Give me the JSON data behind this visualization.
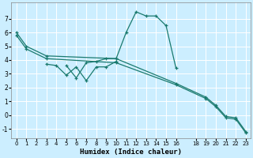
{
  "xlabel": "Humidex (Indice chaleur)",
  "background_color": "#cceeff",
  "grid_color": "#ffffff",
  "line_color": "#1a7a6e",
  "xlim": [
    -0.5,
    23.5
  ],
  "ylim": [
    -1.7,
    8.2
  ],
  "xticks": [
    0,
    1,
    2,
    3,
    4,
    5,
    6,
    7,
    8,
    9,
    10,
    11,
    12,
    13,
    14,
    15,
    16,
    18,
    19,
    20,
    21,
    22,
    23
  ],
  "yticks": [
    -1,
    0,
    1,
    2,
    3,
    4,
    5,
    6,
    7
  ],
  "lines": [
    {
      "x": [
        0,
        1,
        3,
        10,
        16,
        19,
        20,
        21,
        22,
        23
      ],
      "y": [
        6.0,
        5.0,
        4.3,
        4.1,
        2.3,
        1.3,
        0.7,
        -0.1,
        -0.2,
        -1.2
      ]
    },
    {
      "x": [
        0,
        1,
        3,
        10,
        16,
        19,
        20,
        21,
        22,
        23
      ],
      "y": [
        5.8,
        4.8,
        4.1,
        3.8,
        2.2,
        1.2,
        0.6,
        -0.2,
        -0.3,
        -1.3
      ]
    },
    {
      "x": [
        5,
        6,
        7,
        8,
        9,
        10,
        11,
        12,
        13,
        14,
        15,
        16
      ],
      "y": [
        3.6,
        2.7,
        3.8,
        3.9,
        4.1,
        4.1,
        6.0,
        7.5,
        7.2,
        7.2,
        6.5,
        3.4
      ]
    },
    {
      "x": [
        3,
        4,
        5,
        6,
        7,
        8,
        9,
        10
      ],
      "y": [
        3.7,
        3.6,
        2.9,
        3.5,
        2.5,
        3.5,
        3.5,
        3.9
      ]
    }
  ]
}
